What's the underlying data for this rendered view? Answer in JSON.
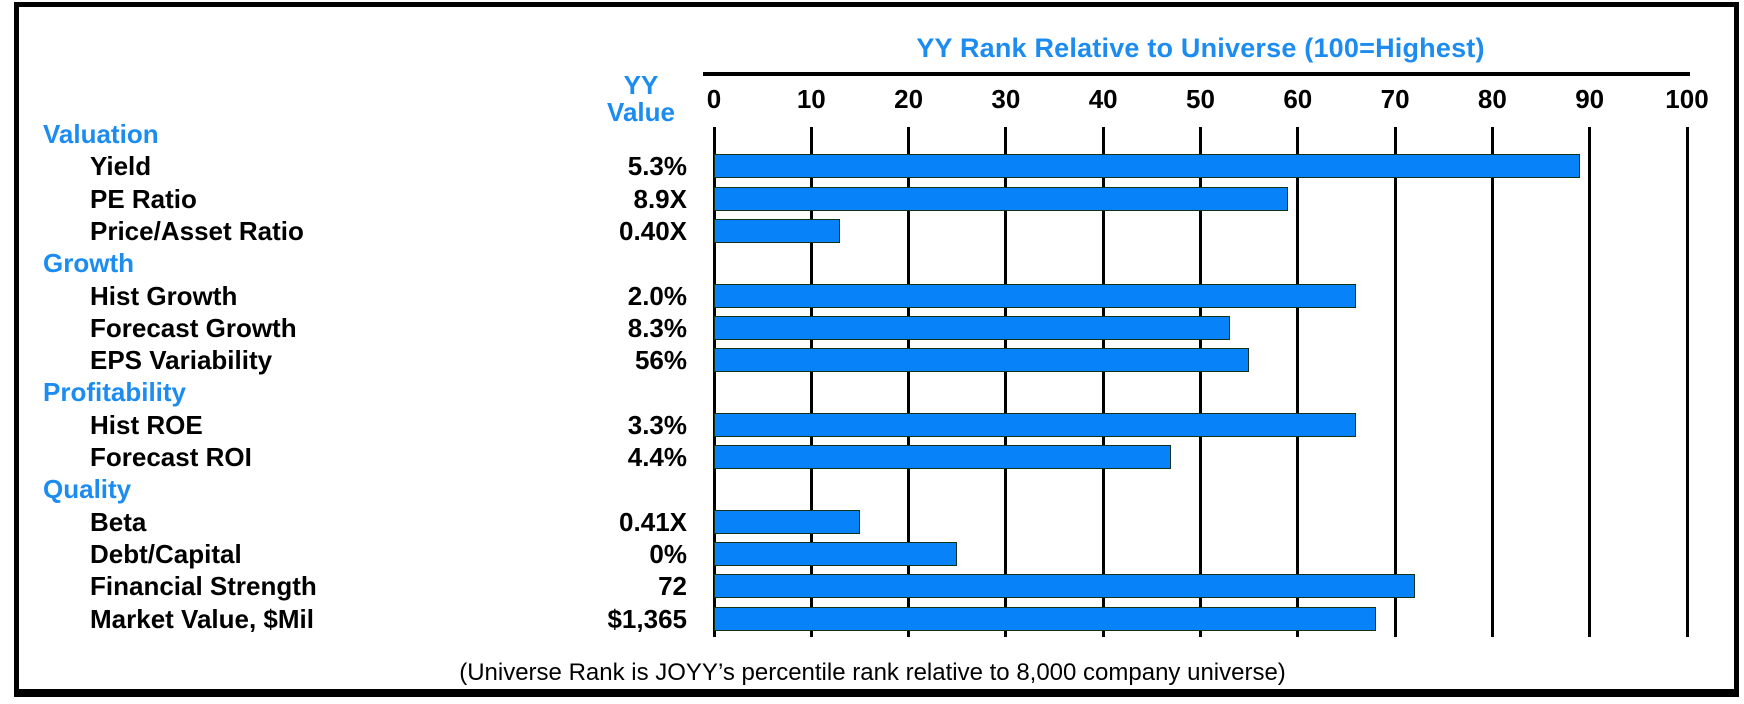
{
  "header": {
    "value_column_line1": "YY",
    "value_column_line2": "Value"
  },
  "footnote": "(Universe Rank is JOYY’s percentile rank relative to 8,000 company universe)",
  "colors": {
    "accent_blue": "#1d8cf0",
    "bar_fill": "#0782f8"
  },
  "chart_data": {
    "type": "bar",
    "orientation": "horizontal",
    "title": "YY Rank Relative to Universe (100=Highest)",
    "value_column_header": "YY Value",
    "axis": {
      "min": 0,
      "max": 100,
      "tick_interval": 10,
      "tick_labels": [
        "0",
        "10",
        "20",
        "30",
        "40",
        "50",
        "60",
        "70",
        "80",
        "90",
        "100"
      ],
      "grid": true,
      "position": "top"
    },
    "rows": [
      {
        "type": "section",
        "label": "Valuation"
      },
      {
        "type": "item",
        "label": "Yield",
        "yy_value": "5.3%",
        "rank": 89
      },
      {
        "type": "item",
        "label": "PE Ratio",
        "yy_value": "8.9X",
        "rank": 59
      },
      {
        "type": "item",
        "label": "Price/Asset Ratio",
        "yy_value": "0.40X",
        "rank": 13
      },
      {
        "type": "section",
        "label": "Growth"
      },
      {
        "type": "item",
        "label": "Hist Growth",
        "yy_value": "2.0%",
        "rank": 66
      },
      {
        "type": "item",
        "label": "Forecast Growth",
        "yy_value": "8.3%",
        "rank": 53
      },
      {
        "type": "item",
        "label": "EPS Variability",
        "yy_value": "56%",
        "rank": 55
      },
      {
        "type": "section",
        "label": "Profitability"
      },
      {
        "type": "item",
        "label": "Hist ROE",
        "yy_value": "3.3%",
        "rank": 66
      },
      {
        "type": "item",
        "label": "Forecast ROI",
        "yy_value": "4.4%",
        "rank": 47
      },
      {
        "type": "section",
        "label": "Quality"
      },
      {
        "type": "item",
        "label": "Beta",
        "yy_value": "0.41X",
        "rank": 15
      },
      {
        "type": "item",
        "label": "Debt/Capital",
        "yy_value": "0%",
        "rank": 25
      },
      {
        "type": "item",
        "label": "Financial Strength",
        "yy_value": "72",
        "rank": 72
      },
      {
        "type": "item",
        "label": "Market Value, $Mil",
        "yy_value": "$1,365",
        "rank": 68
      }
    ]
  }
}
